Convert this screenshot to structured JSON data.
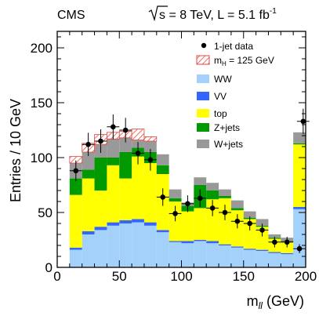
{
  "header": {
    "experiment": "CMS",
    "energy_sqrt": "s",
    "energy_rest": " = 8 TeV, L = 5.1 fb",
    "energy_sup": "-1"
  },
  "colors": {
    "WW": "#a3d1fa",
    "VV": "#3366ff",
    "top": "#ffff00",
    "Zjets": "#009900",
    "Wjets": "#999999",
    "higgs_hatch": "#e8453c",
    "data": "#000000"
  },
  "chart_data": {
    "type": "bar",
    "stacked": true,
    "xlabel_main": "m",
    "xlabel_sub": "ll",
    "xlabel_unit": " (GeV)",
    "ylabel": "Entries / 10 GeV",
    "xlim": [
      0,
      200
    ],
    "ylim": [
      0,
      215
    ],
    "x_ticks": [
      0,
      50,
      100,
      150,
      200
    ],
    "y_ticks": [
      0,
      50,
      100,
      150,
      200
    ],
    "grid": false,
    "legend_position": "top-right",
    "bin_edges": [
      10,
      20,
      30,
      40,
      50,
      60,
      70,
      80,
      90,
      100,
      110,
      120,
      130,
      140,
      150,
      160,
      170,
      180,
      190,
      200
    ],
    "series": [
      {
        "name": "WW",
        "values": [
          16,
          30,
          34,
          38,
          40,
          41,
          38,
          32,
          23,
          22,
          24,
          22,
          20,
          18,
          16,
          15,
          13,
          12,
          53
        ]
      },
      {
        "name": "VV",
        "values": [
          2,
          3,
          3,
          3,
          3,
          3,
          3,
          2,
          1,
          2,
          1,
          2,
          1,
          1,
          1,
          1,
          1,
          1,
          2
        ]
      },
      {
        "name": "top",
        "values": [
          48,
          48,
          33,
          52,
          38,
          57,
          54,
          51,
          36,
          27,
          29,
          38,
          42,
          33,
          27,
          21,
          12,
          10,
          57
        ]
      },
      {
        "name": "Z+jets",
        "values": [
          15,
          8,
          30,
          7,
          24,
          8,
          10,
          8,
          3,
          5,
          21,
          8,
          2,
          2,
          1,
          1,
          1,
          1,
          1
        ]
      },
      {
        "name": "W+jets",
        "values": [
          14,
          16,
          12,
          17,
          13,
          7,
          10,
          10,
          8,
          3,
          7,
          7,
          6,
          7,
          6,
          6,
          3,
          3,
          10
        ]
      }
    ],
    "higgs": {
      "name": "m_H = 125 GeV",
      "values": [
        6,
        8,
        9,
        6,
        6,
        10,
        4,
        0,
        0,
        0,
        0,
        0,
        0,
        0,
        0,
        0,
        0,
        0,
        0
      ]
    },
    "data": {
      "name": "1-jet data",
      "x": [
        15,
        25,
        35,
        45,
        55,
        65,
        75,
        85,
        95,
        105,
        115,
        125,
        135,
        145,
        155,
        165,
        175,
        185,
        195
      ],
      "y": [
        88,
        112,
        115,
        128,
        125,
        104,
        98,
        64,
        49,
        58,
        63,
        54,
        50,
        42,
        40,
        34,
        23,
        23,
        17
      ]
    },
    "overflow_point": {
      "x": 198,
      "y": 133
    },
    "legend_entries": [
      {
        "key": "data",
        "label": "1-jet data"
      },
      {
        "key": "higgs",
        "label_main": "m",
        "label_sub": "H",
        "label_rest": " = 125 GeV"
      },
      {
        "key": "WW",
        "label": "WW"
      },
      {
        "key": "VV",
        "label": "VV"
      },
      {
        "key": "top",
        "label": "top"
      },
      {
        "key": "Zjets",
        "label": "Z+jets"
      },
      {
        "key": "Wjets",
        "label": "W+jets"
      }
    ]
  }
}
